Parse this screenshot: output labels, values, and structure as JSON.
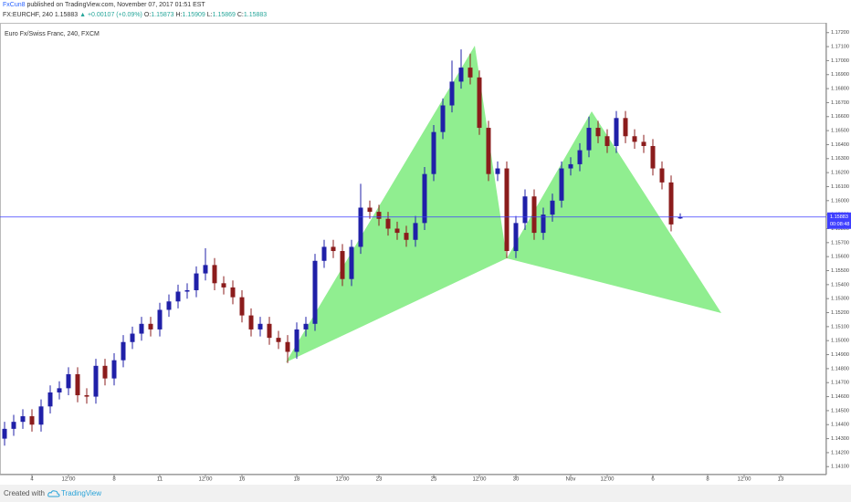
{
  "header": {
    "author": "FxCun8",
    "published": "published on TradingView.com, November 07, 2017 01:51 EST",
    "symbol": "FX:EURCHF, 240",
    "price": "1.15883",
    "change": "▲ +0.00107 (+0.09%)",
    "ohlc": [
      {
        "label": "O:",
        "value": "1.15873"
      },
      {
        "label": "H:",
        "value": "1.15909"
      },
      {
        "label": "L:",
        "value": "1.15869"
      },
      {
        "label": "C:",
        "value": "1.15883"
      }
    ]
  },
  "chart_data": {
    "type": "candlestick",
    "title": "Euro Fx/Swiss Franc, 240, FXCM",
    "categories": [
      null,
      null,
      null,
      "4",
      null,
      null,
      null,
      "12:00",
      null,
      null,
      null,
      null,
      "8",
      null,
      null,
      null,
      null,
      "11",
      null,
      null,
      null,
      null,
      "12:00",
      null,
      null,
      null,
      "16",
      null,
      null,
      null,
      null,
      null,
      "18",
      null,
      null,
      null,
      null,
      "12:00",
      null,
      null,
      null,
      "23",
      null,
      null,
      null,
      null,
      null,
      "25",
      null,
      null,
      null,
      null,
      "12:00",
      null,
      null,
      null,
      "30",
      null,
      null,
      null,
      null,
      null,
      "Nov",
      null,
      null,
      null,
      "12:00",
      null,
      null,
      null,
      null,
      "6",
      null,
      null,
      null,
      null,
      null,
      "8",
      null,
      null,
      null,
      "12:00",
      null,
      null,
      null,
      "13",
      null,
      null,
      null,
      null
    ],
    "ohlc": [
      [
        1.143,
        1.1442,
        1.1425,
        1.1437
      ],
      [
        1.1437,
        1.1447,
        1.1432,
        1.1442
      ],
      [
        1.1442,
        1.1451,
        1.1437,
        1.1446
      ],
      [
        1.1446,
        1.1451,
        1.1435,
        1.144
      ],
      [
        1.144,
        1.1458,
        1.1435,
        1.1453
      ],
      [
        1.1453,
        1.1468,
        1.1448,
        1.1463
      ],
      [
        1.1463,
        1.1471,
        1.1458,
        1.1466
      ],
      [
        1.1466,
        1.1481,
        1.1461,
        1.1476
      ],
      [
        1.1476,
        1.1481,
        1.1456,
        1.1461
      ],
      [
        1.1461,
        1.1466,
        1.1455,
        1.146
      ],
      [
        1.146,
        1.1487,
        1.1455,
        1.1482
      ],
      [
        1.1482,
        1.1487,
        1.1468,
        1.1473
      ],
      [
        1.1473,
        1.1491,
        1.1468,
        1.1486
      ],
      [
        1.1486,
        1.1504,
        1.1481,
        1.1499
      ],
      [
        1.1499,
        1.151,
        1.1494,
        1.1505
      ],
      [
        1.1505,
        1.1517,
        1.15,
        1.1512
      ],
      [
        1.1512,
        1.1517,
        1.1503,
        1.1508
      ],
      [
        1.1508,
        1.1527,
        1.1503,
        1.1522
      ],
      [
        1.1522,
        1.1533,
        1.1517,
        1.1528
      ],
      [
        1.1528,
        1.154,
        1.1523,
        1.1535
      ],
      [
        1.1535,
        1.1541,
        1.153,
        1.1536
      ],
      [
        1.1536,
        1.1553,
        1.1531,
        1.1548
      ],
      [
        1.1548,
        1.1566,
        1.1543,
        1.1554
      ],
      [
        1.1554,
        1.1559,
        1.1536,
        1.1541
      ],
      [
        1.1541,
        1.1546,
        1.1533,
        1.1538
      ],
      [
        1.1538,
        1.1543,
        1.1526,
        1.1531
      ],
      [
        1.1531,
        1.1536,
        1.1513,
        1.1518
      ],
      [
        1.1518,
        1.1523,
        1.1503,
        1.1508
      ],
      [
        1.1508,
        1.1517,
        1.1503,
        1.1512
      ],
      [
        1.1512,
        1.1517,
        1.1497,
        1.1502
      ],
      [
        1.1502,
        1.1507,
        1.1494,
        1.1499
      ],
      [
        1.1499,
        1.1504,
        1.1484,
        1.1492
      ],
      [
        1.1492,
        1.1513,
        1.1487,
        1.1508
      ],
      [
        1.1508,
        1.1517,
        1.1503,
        1.1512
      ],
      [
        1.1512,
        1.1562,
        1.1507,
        1.1557
      ],
      [
        1.1557,
        1.1572,
        1.1552,
        1.1567
      ],
      [
        1.1567,
        1.1572,
        1.1559,
        1.1564
      ],
      [
        1.1564,
        1.1569,
        1.1539,
        1.1544
      ],
      [
        1.1544,
        1.1572,
        1.1539,
        1.1567
      ],
      [
        1.1567,
        1.1612,
        1.1562,
        1.1595
      ],
      [
        1.1595,
        1.16,
        1.1587,
        1.1592
      ],
      [
        1.1592,
        1.1597,
        1.1582,
        1.1587
      ],
      [
        1.1587,
        1.1592,
        1.1575,
        1.158
      ],
      [
        1.158,
        1.1585,
        1.1572,
        1.1577
      ],
      [
        1.1577,
        1.1582,
        1.1567,
        1.1572
      ],
      [
        1.1572,
        1.1589,
        1.1567,
        1.1584
      ],
      [
        1.1584,
        1.1624,
        1.1579,
        1.1619
      ],
      [
        1.1619,
        1.1654,
        1.1614,
        1.1649
      ],
      [
        1.1649,
        1.1673,
        1.1644,
        1.1668
      ],
      [
        1.1668,
        1.17,
        1.1663,
        1.1685
      ],
      [
        1.1685,
        1.1708,
        1.168,
        1.1695
      ],
      [
        1.1695,
        1.1705,
        1.1683,
        1.1688
      ],
      [
        1.1688,
        1.1693,
        1.1647,
        1.1652
      ],
      [
        1.1652,
        1.1657,
        1.1614,
        1.1619
      ],
      [
        1.1619,
        1.1628,
        1.1614,
        1.1623
      ],
      [
        1.1623,
        1.1628,
        1.1559,
        1.1564
      ],
      [
        1.1564,
        1.1589,
        1.1559,
        1.1584
      ],
      [
        1.1584,
        1.1608,
        1.1579,
        1.1603
      ],
      [
        1.1603,
        1.1608,
        1.1572,
        1.1577
      ],
      [
        1.1577,
        1.1595,
        1.1572,
        1.159
      ],
      [
        1.159,
        1.1605,
        1.1585,
        1.16
      ],
      [
        1.16,
        1.1628,
        1.1595,
        1.1623
      ],
      [
        1.1623,
        1.1631,
        1.1618,
        1.1626
      ],
      [
        1.1626,
        1.1641,
        1.1621,
        1.1636
      ],
      [
        1.1636,
        1.166,
        1.1631,
        1.1652
      ],
      [
        1.1652,
        1.1657,
        1.1641,
        1.1646
      ],
      [
        1.1646,
        1.1651,
        1.1634,
        1.1639
      ],
      [
        1.1639,
        1.1664,
        1.1634,
        1.1659
      ],
      [
        1.1659,
        1.1664,
        1.1641,
        1.1646
      ],
      [
        1.1646,
        1.1651,
        1.1637,
        1.1642
      ],
      [
        1.1642,
        1.1647,
        1.1634,
        1.1639
      ],
      [
        1.1639,
        1.1644,
        1.1618,
        1.1623
      ],
      [
        1.1623,
        1.1628,
        1.1608,
        1.1613
      ],
      [
        1.1613,
        1.1618,
        1.1578,
        1.1583
      ],
      [
        1.15873,
        1.15909,
        1.15869,
        1.15883
      ],
      null,
      null,
      null,
      null,
      null,
      null,
      null,
      null,
      null,
      null,
      null,
      null,
      null,
      null,
      null
    ],
    "up_color": "#2020a8",
    "down_color": "#8b1c1c",
    "ylim": [
      1.1403,
      1.1727
    ],
    "yticks": [
      {
        "value": 1.141,
        "label": "1.14100"
      },
      {
        "value": 1.142,
        "label": "1.14200"
      },
      {
        "value": 1.143,
        "label": "1.14300"
      },
      {
        "value": 1.144,
        "label": "1.14400"
      },
      {
        "value": 1.145,
        "label": "1.14500"
      },
      {
        "value": 1.146,
        "label": "1.14600"
      },
      {
        "value": 1.147,
        "label": "1.14700"
      },
      {
        "value": 1.148,
        "label": "1.14800"
      },
      {
        "value": 1.149,
        "label": "1.14900"
      },
      {
        "value": 1.15,
        "label": "1.15000"
      },
      {
        "value": 1.151,
        "label": "1.15100"
      },
      {
        "value": 1.152,
        "label": "1.15200"
      },
      {
        "value": 1.153,
        "label": "1.15300"
      },
      {
        "value": 1.154,
        "label": "1.15400"
      },
      {
        "value": 1.155,
        "label": "1.15500"
      },
      {
        "value": 1.156,
        "label": "1.15600"
      },
      {
        "value": 1.157,
        "label": "1.15700"
      },
      {
        "value": 1.158,
        "label": "1.15800"
      },
      {
        "value": 1.159,
        "label": "1.15900"
      },
      {
        "value": 1.16,
        "label": "1.16000"
      },
      {
        "value": 1.161,
        "label": "1.16100"
      },
      {
        "value": 1.162,
        "label": "1.16200"
      },
      {
        "value": 1.163,
        "label": "1.16300"
      },
      {
        "value": 1.164,
        "label": "1.16400"
      },
      {
        "value": 1.165,
        "label": "1.16500"
      },
      {
        "value": 1.166,
        "label": "1.16600"
      },
      {
        "value": 1.167,
        "label": "1.16700"
      },
      {
        "value": 1.168,
        "label": "1.16800"
      },
      {
        "value": 1.169,
        "label": "1.16900"
      },
      {
        "value": 1.17,
        "label": "1.17000"
      },
      {
        "value": 1.171,
        "label": "1.17100"
      },
      {
        "value": 1.172,
        "label": "1.17200"
      }
    ],
    "grid": false,
    "last_price": {
      "value": 1.15883,
      "label": "1.15883",
      "countdown": "00:08:48",
      "color": "#3f3fff"
    }
  },
  "footer": {
    "created": "Created with",
    "brand": "TradingView"
  }
}
